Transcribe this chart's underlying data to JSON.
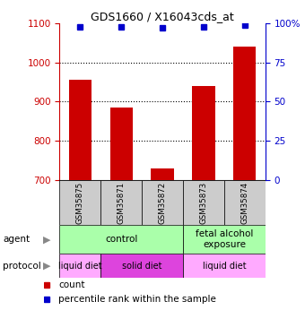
{
  "title": "GDS1660 / X16043cds_at",
  "samples": [
    "GSM35875",
    "GSM35871",
    "GSM35872",
    "GSM35873",
    "GSM35874"
  ],
  "counts": [
    955,
    885,
    730,
    940,
    1040
  ],
  "percentiles": [
    98,
    98,
    97,
    98,
    99
  ],
  "ylim_left": [
    700,
    1100
  ],
  "ylim_right": [
    0,
    100
  ],
  "yticks_left": [
    700,
    800,
    900,
    1000,
    1100
  ],
  "yticks_right": [
    0,
    25,
    50,
    75,
    100
  ],
  "ytick_right_labels": [
    "0",
    "25",
    "50",
    "75",
    "100%"
  ],
  "bar_color": "#cc0000",
  "dot_color": "#0000cc",
  "bar_width": 0.55,
  "agent_labels": [
    {
      "text": "control",
      "start": 0,
      "end": 2,
      "color": "#aaffaa"
    },
    {
      "text": "fetal alcohol\nexposure",
      "start": 3,
      "end": 4,
      "color": "#aaffaa"
    }
  ],
  "protocol_labels": [
    {
      "text": "liquid diet",
      "start": 0,
      "end": 0,
      "color": "#ffaaff"
    },
    {
      "text": "solid diet",
      "start": 1,
      "end": 2,
      "color": "#dd44dd"
    },
    {
      "text": "liquid diet",
      "start": 3,
      "end": 4,
      "color": "#ffaaff"
    }
  ],
  "sample_box_color": "#cccccc",
  "left_label_color": "#cc0000",
  "right_label_color": "#0000cc",
  "grid_yticks": [
    800,
    900,
    1000
  ]
}
